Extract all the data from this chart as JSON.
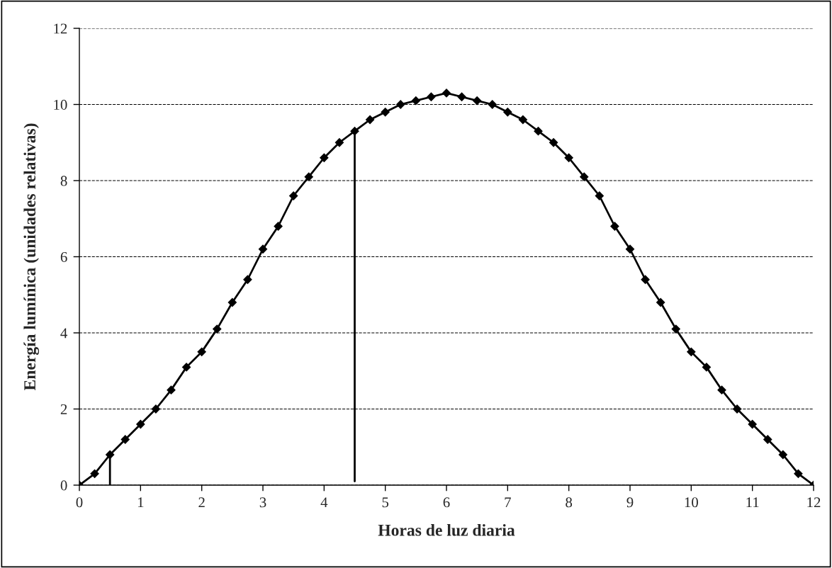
{
  "chart_data": {
    "type": "line",
    "xlabel": "Horas de luz diaria",
    "ylabel": "Energía lumínica (unidades relativas)",
    "xlim": [
      0,
      12
    ],
    "xticks": [
      0,
      1,
      2,
      3,
      4,
      5,
      6,
      7,
      8,
      9,
      10,
      11,
      12
    ],
    "ylim": [
      0,
      12
    ],
    "yticks": [
      0,
      2,
      4,
      6,
      8,
      10,
      12
    ],
    "grid": "y",
    "legend": false,
    "series": [
      {
        "color": "#000000",
        "marker": "diamond",
        "line_style": "solid",
        "x": [
          0,
          0.25,
          0.5,
          0.75,
          1,
          1.25,
          1.5,
          1.75,
          2,
          2.25,
          2.5,
          2.75,
          3,
          3.25,
          3.5,
          3.75,
          4,
          4.25,
          4.5,
          4.75,
          5,
          5.25,
          5.5,
          5.75,
          6,
          6.25,
          6.5,
          6.75,
          7,
          7.25,
          7.5,
          7.75,
          8,
          8.25,
          8.5,
          8.75,
          9,
          9.25,
          9.5,
          9.75,
          10,
          10.25,
          10.5,
          10.75,
          11,
          11.25,
          11.5,
          11.75,
          12
        ],
        "values": [
          0,
          0.3,
          0.8,
          1.2,
          1.6,
          2.0,
          2.5,
          3.1,
          3.5,
          4.1,
          4.8,
          5.4,
          6.2,
          6.8,
          7.6,
          8.1,
          8.6,
          9.0,
          9.3,
          9.6,
          9.8,
          10.0,
          10.1,
          10.2,
          10.3,
          10.2,
          10.1,
          10.0,
          9.8,
          9.6,
          9.3,
          9.0,
          8.6,
          8.1,
          7.6,
          6.8,
          6.2,
          5.4,
          4.8,
          4.1,
          3.5,
          3.1,
          2.5,
          2.0,
          1.6,
          1.2,
          0.8,
          0.3,
          0
        ]
      },
      {
        "type": "line",
        "color": "#000000",
        "marker": "none",
        "line_style": "solid",
        "x": [
          0.5,
          0.5
        ],
        "values": [
          0,
          0.8
        ]
      },
      {
        "type": "line",
        "color": "#000000",
        "marker": "none",
        "line_style": "solid",
        "x": [
          4.5,
          4.5
        ],
        "values": [
          0.1,
          9.3
        ]
      }
    ]
  }
}
